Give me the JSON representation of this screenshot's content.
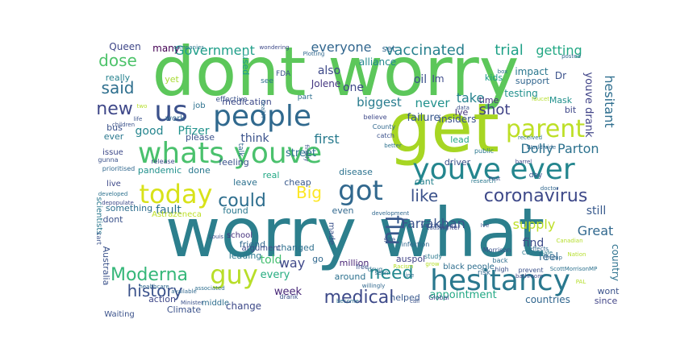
{
  "words": [
    {
      "text": "worry what",
      "color": "#2c7f8d"
    },
    {
      "text": "dont worry",
      "color": "#5cc75a"
    },
    {
      "text": "get",
      "color": "#a7d623"
    },
    {
      "text": "whats youve",
      "color": "#4ac16d"
    },
    {
      "text": "people",
      "color": "#30698e"
    },
    {
      "text": "youve ever",
      "color": "#24868e"
    },
    {
      "text": "hesitancy",
      "color": "#2a788e"
    },
    {
      "text": "parent",
      "color": "#bddf26"
    },
    {
      "text": "us",
      "color": "#3b518b"
    },
    {
      "text": "today",
      "color": "#d8e219"
    },
    {
      "text": "got",
      "color": "#31688e"
    },
    {
      "text": "guy",
      "color": "#b8de29"
    },
    {
      "text": "coronavirus",
      "color": "#3e4989"
    },
    {
      "text": "Moderna",
      "color": "#35b779"
    },
    {
      "text": "could",
      "color": "#2e6e8e"
    },
    {
      "text": "new",
      "color": "#3f4889"
    },
    {
      "text": "said",
      "color": "#2e6f8e"
    },
    {
      "text": "flu",
      "color": "#38598c"
    },
    {
      "text": "Big",
      "color": "#fde725"
    },
    {
      "text": "like",
      "color": "#3b528b"
    },
    {
      "text": "need",
      "color": "#23888e"
    },
    {
      "text": "medical",
      "color": "#3e4a89"
    },
    {
      "text": "history",
      "color": "#3b528b"
    },
    {
      "text": "dose",
      "color": "#4ec36b"
    },
    {
      "text": "shot",
      "color": "#404387"
    },
    {
      "text": "vaccinated",
      "color": "#27808e"
    },
    {
      "text": "trial",
      "color": "#1fa187"
    },
    {
      "text": "getting",
      "color": "#22a884"
    },
    {
      "text": "Government",
      "color": "#1f9e89"
    },
    {
      "text": "everyone",
      "color": "#31668e"
    },
    {
      "text": "Dolly Parton",
      "color": "#2c718e"
    },
    {
      "text": "Farrakhan",
      "color": "#3a548c"
    },
    {
      "text": "Great",
      "color": "#31688e"
    },
    {
      "text": "supply",
      "color": "#bddf26"
    },
    {
      "text": "hesitant",
      "color": "#2e6e8e"
    },
    {
      "text": "youve drank",
      "color": "#404387"
    },
    {
      "text": "take",
      "color": "#26828e"
    },
    {
      "text": "biggest",
      "color": "#287c8e"
    },
    {
      "text": "never",
      "color": "#21918c"
    },
    {
      "text": "first",
      "color": "#297b8e"
    },
    {
      "text": "think",
      "color": "#3b528b"
    },
    {
      "text": "good",
      "color": "#25858e"
    },
    {
      "text": "Pfizer",
      "color": "#20928c"
    },
    {
      "text": "still",
      "color": "#38598c"
    },
    {
      "text": "find",
      "color": "#3e4c8a"
    },
    {
      "text": "fault",
      "color": "#2c728e"
    },
    {
      "text": "told",
      "color": "#44bf70"
    },
    {
      "text": "way",
      "color": "#3f4889"
    },
    {
      "text": "every",
      "color": "#27ad81"
    },
    {
      "text": "week",
      "color": "#482878"
    },
    {
      "text": "appointment",
      "color": "#22a884"
    },
    {
      "text": "countries",
      "color": "#31668e"
    },
    {
      "text": "street",
      "color": "#2c718e"
    },
    {
      "text": "also",
      "color": "#3e4989"
    },
    {
      "text": "one",
      "color": "#3f4889"
    },
    {
      "text": "failure",
      "color": "#38588c"
    },
    {
      "text": "insiders",
      "color": "#3b528b"
    },
    {
      "text": "oil",
      "color": "#3b528b"
    },
    {
      "text": "Im",
      "color": "#3e4c8a"
    },
    {
      "text": "Jolene",
      "color": "#453781"
    },
    {
      "text": "alliance",
      "color": "#23898e"
    },
    {
      "text": "set",
      "color": "#31668e"
    },
    {
      "text": "really",
      "color": "#26828e"
    },
    {
      "text": "Queen",
      "color": "#3f4788"
    },
    {
      "text": "many",
      "color": "#440154"
    },
    {
      "text": "yet",
      "color": "#a8db34"
    },
    {
      "text": "used",
      "color": "#1e9b8a"
    },
    {
      "text": "medication",
      "color": "#3e4a89"
    },
    {
      "text": "testing",
      "color": "#21908d"
    },
    {
      "text": "impact",
      "color": "#2a778e"
    },
    {
      "text": "kids",
      "color": "#1f9a8a"
    },
    {
      "text": "support",
      "color": "#31668e"
    },
    {
      "text": "Dr",
      "color": "#3b528b"
    },
    {
      "text": "Mask",
      "color": "#21918c"
    },
    {
      "text": "bit",
      "color": "#3f4889"
    },
    {
      "text": "time",
      "color": "#46337e"
    },
    {
      "text": "Ive",
      "color": "#46327e"
    },
    {
      "text": "lead",
      "color": "#22a785"
    },
    {
      "text": "pandemic",
      "color": "#21918c"
    },
    {
      "text": "done",
      "color": "#2a788e"
    },
    {
      "text": "feeling",
      "color": "#3b528b"
    },
    {
      "text": "leave",
      "color": "#2c718e"
    },
    {
      "text": "real",
      "color": "#22a884"
    },
    {
      "text": "cheap",
      "color": "#38598c"
    },
    {
      "text": "disease",
      "color": "#2c728e"
    },
    {
      "text": "driver",
      "color": "#3b528b"
    },
    {
      "text": "cant",
      "color": "#26828e"
    },
    {
      "text": "even",
      "color": "#31688e"
    },
    {
      "text": "Astrazeneca",
      "color": "#bddf26"
    },
    {
      "text": "found",
      "color": "#2a788e"
    },
    {
      "text": "something",
      "color": "#2e6e8e"
    },
    {
      "text": "dont",
      "color": "#3b528b"
    },
    {
      "text": "school",
      "color": "#46337e"
    },
    {
      "text": "friend",
      "color": "#31688e"
    },
    {
      "text": "leading",
      "color": "#2a788e"
    },
    {
      "text": "changed",
      "color": "#2e6f8e"
    },
    {
      "text": "made",
      "color": "#3b528b"
    },
    {
      "text": "million",
      "color": "#482475"
    },
    {
      "text": "go",
      "color": "#31688e"
    },
    {
      "text": "auspol",
      "color": "#414487"
    },
    {
      "text": "around",
      "color": "#2c718e"
    },
    {
      "text": "helped",
      "color": "#38598c"
    },
    {
      "text": "Climate",
      "color": "#3b528b"
    },
    {
      "text": "change",
      "color": "#3e4a89"
    },
    {
      "text": "action",
      "color": "#3f4889"
    },
    {
      "text": "middle",
      "color": "#2e6e8e"
    },
    {
      "text": "Australia",
      "color": "#3b528b"
    },
    {
      "text": "scientists",
      "color": "#2a788e"
    },
    {
      "text": "live",
      "color": "#3e4989"
    },
    {
      "text": "Waiting",
      "color": "#3b528b"
    },
    {
      "text": "feel",
      "color": "#31688e"
    },
    {
      "text": "country",
      "color": "#2c718e"
    },
    {
      "text": "wont",
      "color": "#3b528b"
    },
    {
      "text": "since",
      "color": "#414487"
    },
    {
      "text": "black people",
      "color": "#2e6e8e"
    },
    {
      "text": "argument",
      "color": "#3e4c8a"
    },
    {
      "text": "please",
      "color": "#3b528b"
    },
    {
      "text": "job",
      "color": "#2c718e"
    },
    {
      "text": "work",
      "color": "#31688e"
    },
    {
      "text": "bus",
      "color": "#3b528b"
    },
    {
      "text": "ever",
      "color": "#2a788e"
    },
    {
      "text": "issue",
      "color": "#3e4a89"
    },
    {
      "text": "talk",
      "color": "#31688e"
    },
    {
      "text": "effective",
      "color": "#3b528b"
    },
    {
      "text": "part",
      "color": "#2e6e8e"
    },
    {
      "text": "FDA",
      "color": "#3b528b"
    },
    {
      "text": "see",
      "color": "#2c718e"
    },
    {
      "text": "believe",
      "color": "#3e4989"
    },
    {
      "text": "County",
      "color": "#31688e"
    },
    {
      "text": "catch",
      "color": "#3b528b"
    },
    {
      "text": "public",
      "color": "#2a788e"
    },
    {
      "text": "release",
      "color": "#3e4a89"
    },
    {
      "text": "children",
      "color": "#3b528b"
    },
    {
      "text": "gunna",
      "color": "#3b528b"
    },
    {
      "text": "prioritised",
      "color": "#31688e"
    },
    {
      "text": "developed",
      "color": "#2c718e"
    },
    {
      "text": "depopulate",
      "color": "#3e4a89"
    },
    {
      "text": "doctor",
      "color": "#31688e"
    },
    {
      "text": "research",
      "color": "#2a788e"
    },
    {
      "text": "day",
      "color": "#3b528b"
    },
    {
      "text": "barrel",
      "color": "#3e4989"
    },
    {
      "text": "received",
      "color": "#2c718e"
    },
    {
      "text": "Worldwide",
      "color": "#31688e"
    },
    {
      "text": "high",
      "color": "#3b528b"
    },
    {
      "text": "back",
      "color": "#2e6e8e"
    },
    {
      "text": "risk",
      "color": "#31688e"
    },
    {
      "text": "prevent",
      "color": "#3b528b"
    },
    {
      "text": "bathroom",
      "color": "#3e4a89"
    },
    {
      "text": "ScottMorrisonMP",
      "color": "#2c718e"
    },
    {
      "text": "Trump",
      "color": "#31688e"
    },
    {
      "text": "Morrison",
      "color": "#3b528b"
    },
    {
      "text": "study",
      "color": "#2a788e"
    },
    {
      "text": "winter",
      "color": "#3e4989"
    },
    {
      "text": "site",
      "color": "#3b528b"
    },
    {
      "text": "infection",
      "color": "#31688e"
    },
    {
      "text": "drug",
      "color": "#2c718e"
    },
    {
      "text": "free",
      "color": "#3b528b"
    },
    {
      "text": "Global",
      "color": "#3e4a89"
    },
    {
      "text": "become",
      "color": "#2c718e"
    },
    {
      "text": "drank",
      "color": "#3b528b"
    },
    {
      "text": "available",
      "color": "#31688e"
    },
    {
      "text": "Minister",
      "color": "#3b528b"
    },
    {
      "text": "associated",
      "color": "#2e6e8e"
    },
    {
      "text": "healthcare",
      "color": "#31688e"
    },
    {
      "text": "Louis",
      "color": "#3b528b"
    },
    {
      "text": "COVIDSafe",
      "color": "#2a788e"
    },
    {
      "text": "effects",
      "color": "#31688e"
    },
    {
      "text": "Post",
      "color": "#3b528b"
    },
    {
      "text": "box",
      "color": "#2c718e"
    },
    {
      "text": "data",
      "color": "#3b528b"
    },
    {
      "text": "Plotting",
      "color": "#31688e"
    },
    {
      "text": "wondering",
      "color": "#3e4a89"
    },
    {
      "text": "companies",
      "color": "#2a788e"
    },
    {
      "text": "posted",
      "color": "#31688e"
    },
    {
      "text": "finally",
      "color": "#3b528b"
    },
    {
      "text": "better",
      "color": "#2c718e"
    },
    {
      "text": "development",
      "color": "#31688e"
    },
    {
      "text": "causing",
      "color": "#3b528b"
    },
    {
      "text": "line",
      "color": "#2e6e8e"
    },
    {
      "text": "call",
      "color": "#3b528b"
    },
    {
      "text": "willingly",
      "color": "#31688e"
    },
    {
      "text": "seen",
      "color": "#2c718e"
    },
    {
      "text": "Ive",
      "color": "#3b528b"
    },
    {
      "text": "Canadian",
      "color": "#b5de2b"
    },
    {
      "text": "PAL",
      "color": "#b5de2b"
    },
    {
      "text": "grow",
      "color": "#b5de2b"
    },
    {
      "text": "faucet",
      "color": "#b5de2b"
    },
    {
      "text": "Nation",
      "color": "#b5de2b"
    },
    {
      "text": "Racism",
      "color": "#b5de2b"
    },
    {
      "text": "health",
      "color": "#31688e"
    },
    {
      "text": "life",
      "color": "#3b528b"
    },
    {
      "text": "two",
      "color": "#b5de2b"
    },
    {
      "text": "vaccine",
      "color": "#3b528b"
    },
    {
      "text": "cart",
      "color": "#3b528b"
    }
  ]
}
